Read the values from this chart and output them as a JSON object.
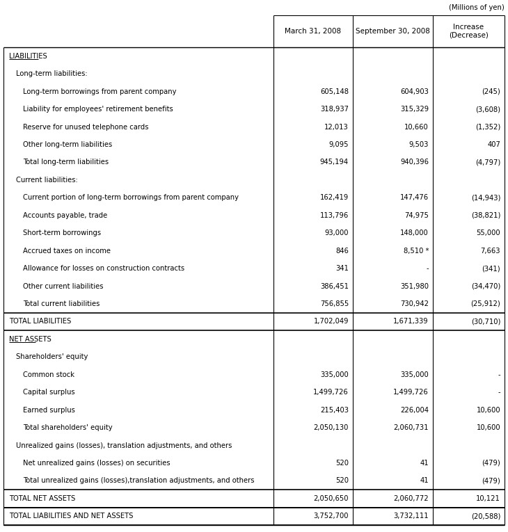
{
  "title_note": "(Millions of yen)",
  "col_headers": [
    "",
    "March 31, 2008",
    "September 30, 2008",
    "Increase\n(Decrease)"
  ],
  "rows": [
    {
      "label": "LIABILITIES",
      "v1": "",
      "v2": "",
      "v3": "",
      "style": "section_header"
    },
    {
      "label": "Long-term liabilities:",
      "v1": "",
      "v2": "",
      "v3": "",
      "style": "subsection"
    },
    {
      "label": "Long-term borrowings from parent company",
      "v1": "605,148",
      "v2": "604,903",
      "v3": "(245)",
      "style": "item",
      "indent": 2
    },
    {
      "label": "Liability for employees' retirement benefits",
      "v1": "318,937",
      "v2": "315,329",
      "v3": "(3,608)",
      "style": "item",
      "indent": 2
    },
    {
      "label": "Reserve for unused telephone cards",
      "v1": "12,013",
      "v2": "10,660",
      "v3": "(1,352)",
      "style": "item",
      "indent": 2
    },
    {
      "label": "Other long-term liabilities",
      "v1": "9,095",
      "v2": "9,503",
      "v3": "407",
      "style": "item",
      "indent": 2
    },
    {
      "label": "Total long-term liabilities",
      "v1": "945,194",
      "v2": "940,396",
      "v3": "(4,797)",
      "style": "item",
      "indent": 2
    },
    {
      "label": "Current liabilities:",
      "v1": "",
      "v2": "",
      "v3": "",
      "style": "subsection"
    },
    {
      "label": "Current portion of long-term borrowings from parent company",
      "v1": "162,419",
      "v2": "147,476",
      "v3": "(14,943)",
      "style": "item",
      "indent": 2
    },
    {
      "label": "Accounts payable, trade",
      "v1": "113,796",
      "v2": "74,975",
      "v3": "(38,821)",
      "style": "item",
      "indent": 2
    },
    {
      "label": "Short-term borrowings",
      "v1": "93,000",
      "v2": "148,000",
      "v3": "55,000",
      "style": "item",
      "indent": 2
    },
    {
      "label": "Accrued taxes on income",
      "v1": "846",
      "v2": "8,510 *",
      "v3": "7,663",
      "style": "item",
      "indent": 2
    },
    {
      "label": "Allowance for losses on construction contracts",
      "v1": "341",
      "v2": "-",
      "v3": "(341)",
      "style": "item",
      "indent": 2
    },
    {
      "label": "Other current liabilities",
      "v1": "386,451",
      "v2": "351,980",
      "v3": "(34,470)",
      "style": "item",
      "indent": 2
    },
    {
      "label": "Total current liabilities",
      "v1": "756,855",
      "v2": "730,942",
      "v3": "(25,912)",
      "style": "item",
      "indent": 2
    },
    {
      "label": "TOTAL LIABILITIES",
      "v1": "1,702,049",
      "v2": "1,671,339",
      "v3": "(30,710)",
      "style": "total"
    },
    {
      "label": "NET ASSETS",
      "v1": "",
      "v2": "",
      "v3": "",
      "style": "section_header"
    },
    {
      "label": "Shareholders' equity",
      "v1": "",
      "v2": "",
      "v3": "",
      "style": "subsection"
    },
    {
      "label": "Common stock",
      "v1": "335,000",
      "v2": "335,000",
      "v3": "-",
      "style": "item",
      "indent": 2
    },
    {
      "label": "Capital surplus",
      "v1": "1,499,726",
      "v2": "1,499,726",
      "v3": "-",
      "style": "item",
      "indent": 2
    },
    {
      "label": "Earned surplus",
      "v1": "215,403",
      "v2": "226,004",
      "v3": "10,600",
      "style": "item",
      "indent": 2
    },
    {
      "label": "Total shareholders' equity",
      "v1": "2,050,130",
      "v2": "2,060,731",
      "v3": "10,600",
      "style": "item",
      "indent": 2
    },
    {
      "label": "Unrealized gains (losses), translation adjustments, and others",
      "v1": "",
      "v2": "",
      "v3": "",
      "style": "subsection"
    },
    {
      "label": "Net unrealized gains (losses) on securities",
      "v1": "520",
      "v2": "41",
      "v3": "(479)",
      "style": "item",
      "indent": 2
    },
    {
      "label": "Total unrealized gains (losses),translation adjustments, and others",
      "v1": "520",
      "v2": "41",
      "v3": "(479)",
      "style": "item",
      "indent": 2
    },
    {
      "label": "TOTAL NET ASSETS",
      "v1": "2,050,650",
      "v2": "2,060,772",
      "v3": "10,121",
      "style": "total"
    },
    {
      "label": "TOTAL LIABILITIES AND NET ASSETS",
      "v1": "3,752,700",
      "v2": "3,732,111",
      "v3": "(20,588)",
      "style": "total"
    }
  ],
  "bg_color": "#ffffff",
  "text_color": "#000000",
  "line_color": "#000000",
  "font_size": 7.2,
  "header_font_size": 7.5
}
